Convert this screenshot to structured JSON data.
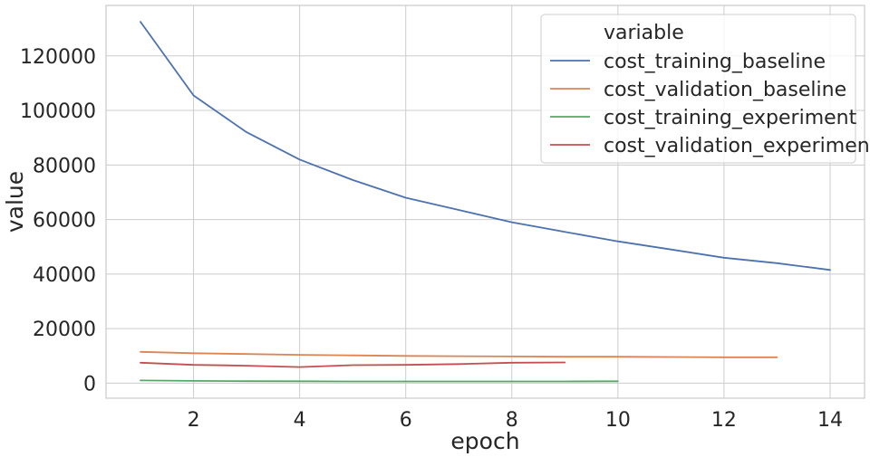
{
  "chart_data": {
    "type": "line",
    "title": "",
    "xlabel": "epoch",
    "ylabel": "value",
    "xlim": [
      0.35,
      14.65
    ],
    "ylim": [
      -5500,
      138500
    ],
    "xticks": [
      2,
      4,
      6,
      8,
      10,
      12,
      14
    ],
    "yticks": [
      0,
      20000,
      40000,
      60000,
      80000,
      100000,
      120000
    ],
    "grid": true,
    "legend": {
      "title": "variable",
      "placement": "top-right"
    },
    "series": [
      {
        "name": "cost_training_baseline",
        "color": "#4c72b0",
        "x": [
          1,
          2,
          3,
          4,
          5,
          6,
          7,
          8,
          9,
          10,
          11,
          12,
          13,
          14
        ],
        "y": [
          132500,
          105500,
          92000,
          82000,
          74500,
          68000,
          63500,
          59000,
          55500,
          52000,
          49000,
          46000,
          44000,
          41500
        ]
      },
      {
        "name": "cost_validation_baseline",
        "color": "#dd8452",
        "x": [
          1,
          2,
          3,
          4,
          5,
          6,
          7,
          8,
          9,
          10,
          11,
          12,
          13
        ],
        "y": [
          11500,
          11000,
          10700,
          10400,
          10200,
          10000,
          9900,
          9800,
          9700,
          9700,
          9600,
          9500,
          9500
        ]
      },
      {
        "name": "cost_training_experiment",
        "color": "#55a868",
        "x": [
          1,
          2,
          3,
          4,
          5,
          6,
          7,
          8,
          9,
          10
        ],
        "y": [
          1000,
          850,
          750,
          700,
          650,
          650,
          650,
          650,
          650,
          700
        ]
      },
      {
        "name": "cost_validation_experiment",
        "color": "#c44e52",
        "x": [
          1,
          2,
          3,
          4,
          5,
          6,
          7,
          8,
          9
        ],
        "y": [
          7500,
          6700,
          6400,
          5900,
          6600,
          6700,
          7000,
          7500,
          7600
        ]
      }
    ]
  }
}
